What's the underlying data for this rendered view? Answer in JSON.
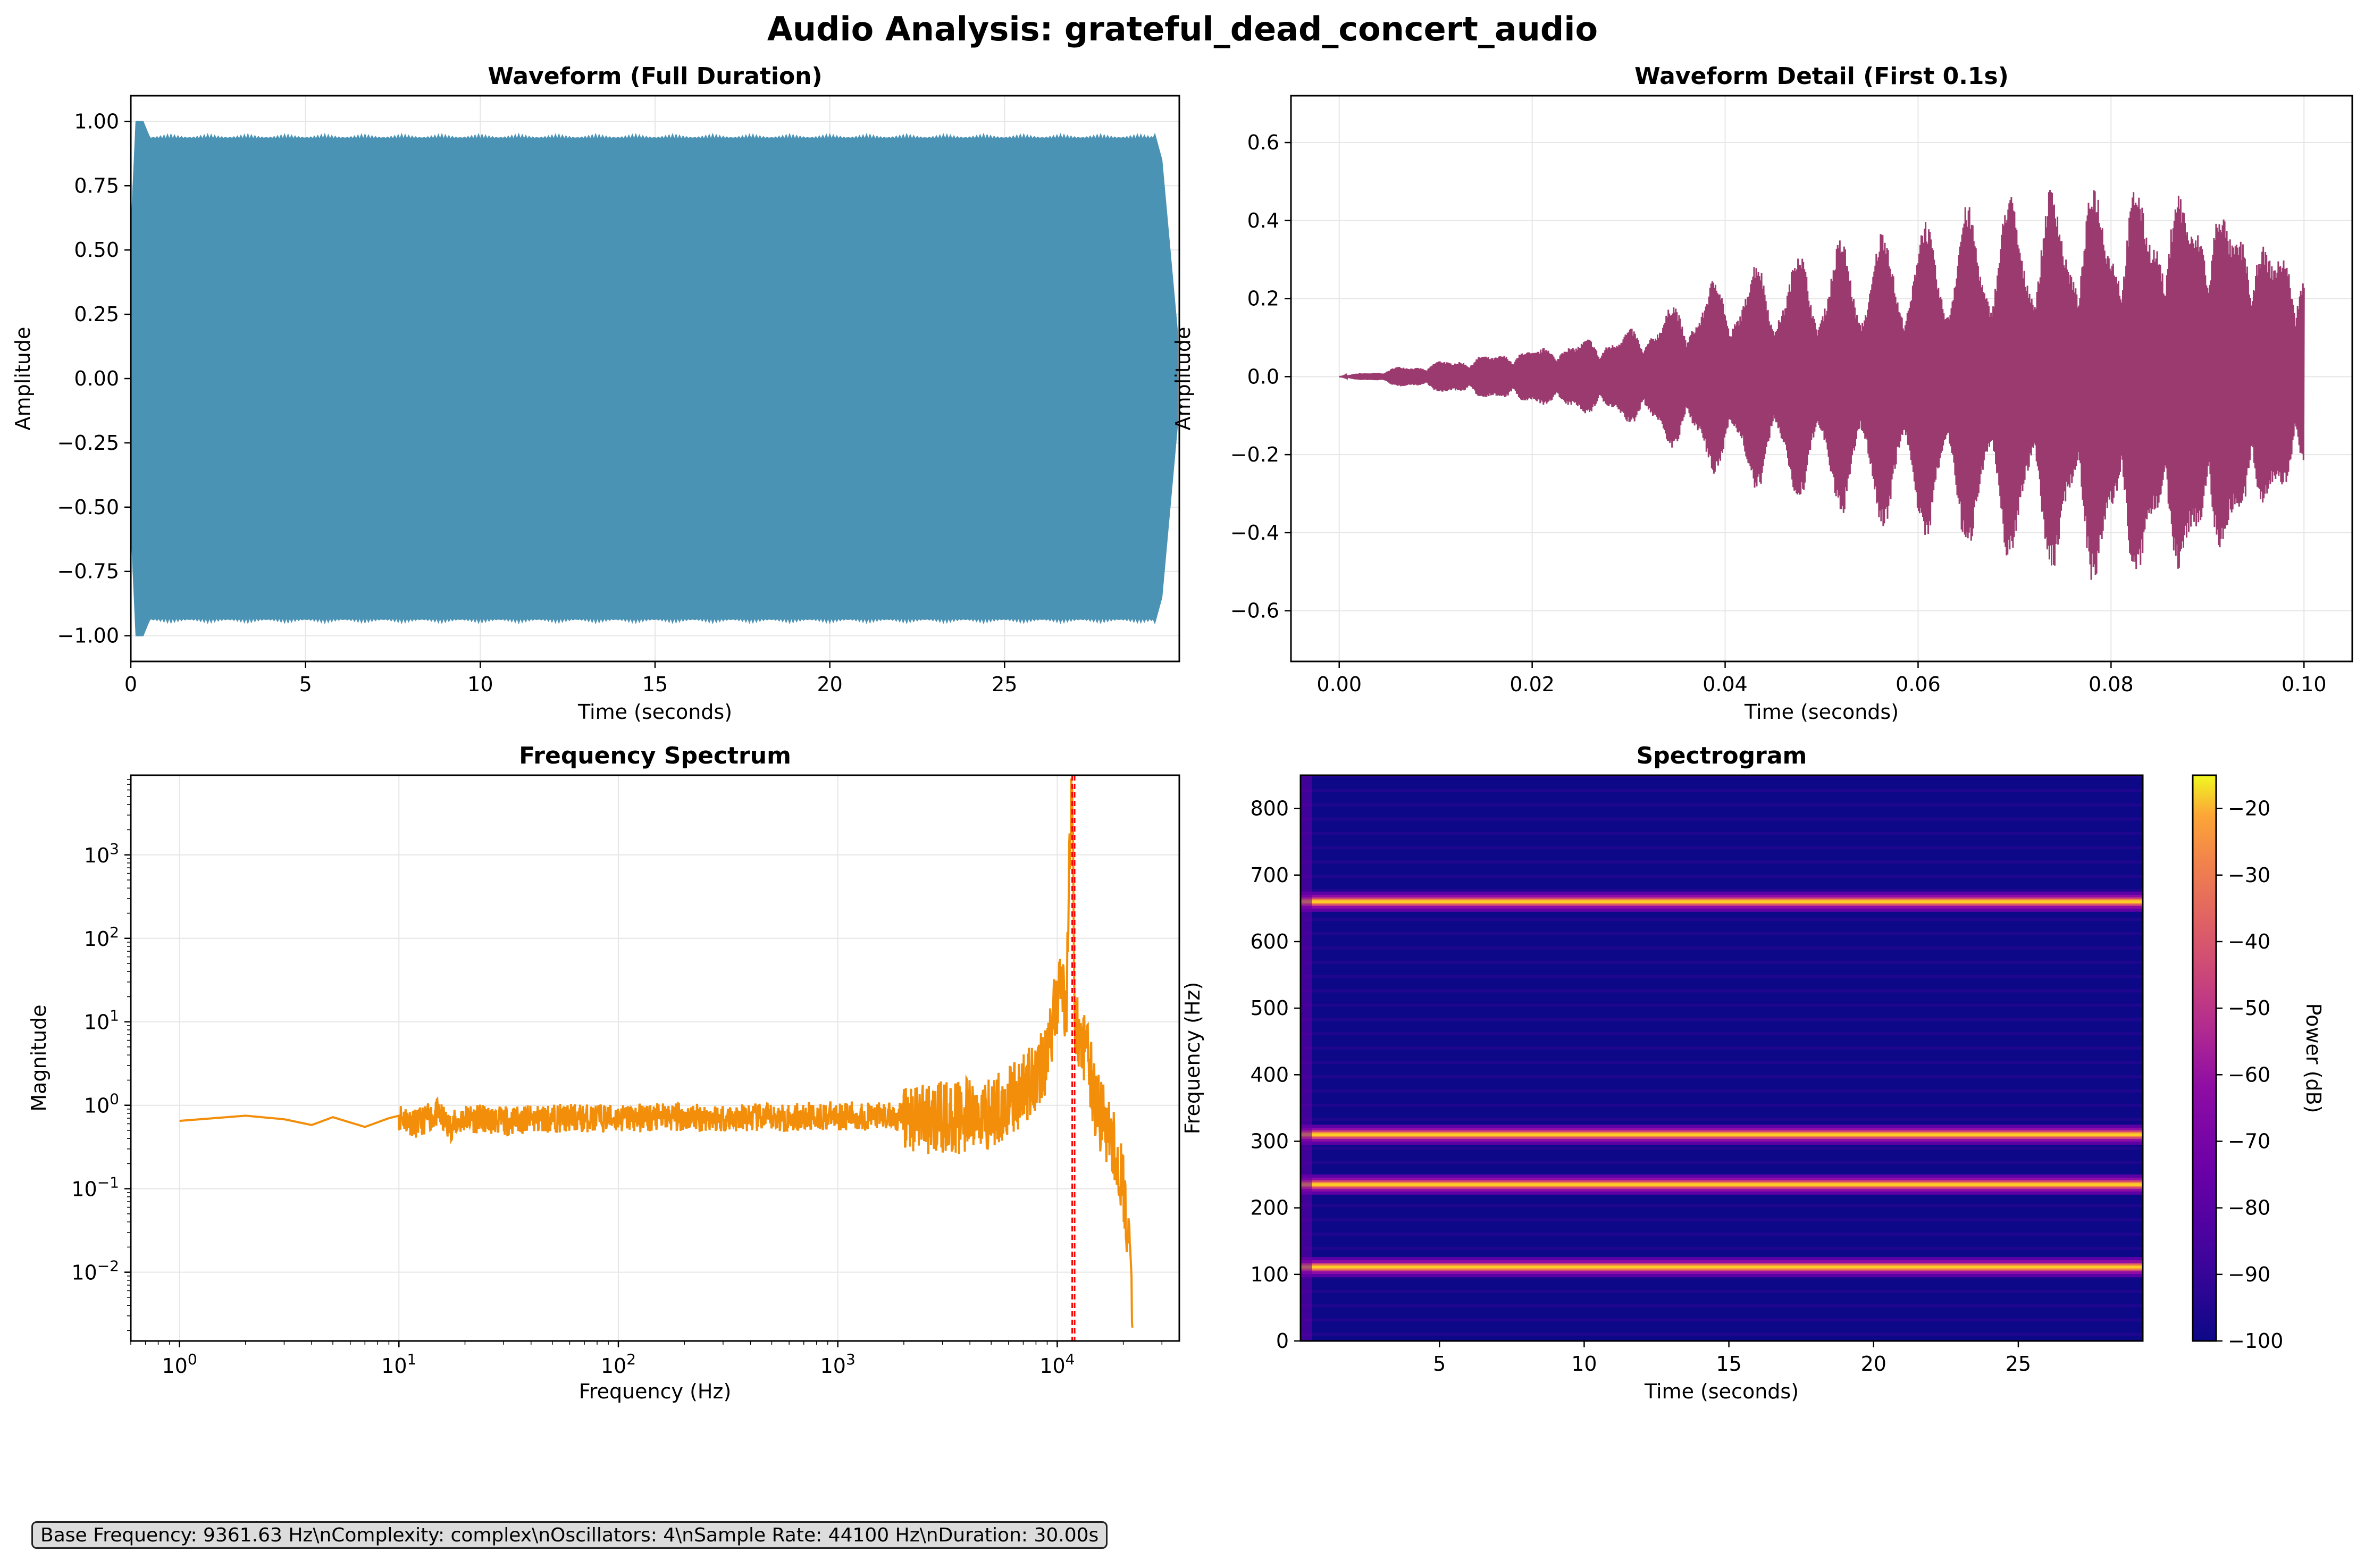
{
  "figure_title": "Audio Analysis: grateful_dead_concert_audio",
  "info_text": "Base Frequency: 9361.63 Hz\\nComplexity: complex\\nOscillators: 4\\nSample Rate: 44100 Hz\\nDuration: 30.00s",
  "colors": {
    "waveform": "#4a93b5",
    "detail": "#9b3a6e",
    "spectrum": "#f28e0a",
    "marker": "#ff0000",
    "grid": "#e6e6e6"
  },
  "chart_data": [
    {
      "type": "area",
      "title": "Waveform (Full Duration)",
      "xlabel": "Time (seconds)",
      "ylabel": "Amplitude",
      "xlim": [
        0,
        30
      ],
      "ylim": [
        -1.1,
        1.1
      ],
      "xticks": [
        0,
        5,
        10,
        15,
        20,
        25
      ],
      "yticks": [
        -1.0,
        -0.75,
        -0.5,
        -0.25,
        0.0,
        0.25,
        0.5,
        0.75,
        1.0
      ],
      "ytick_labels": [
        "−1.00",
        "−0.75",
        "−0.50",
        "−0.25",
        "0.00",
        "0.25",
        "0.50",
        "0.75",
        "1.00"
      ],
      "grid": true,
      "envelope": {
        "x": [
          0,
          0.15,
          0.35,
          0.5,
          29.3,
          29.5,
          30
        ],
        "upper": [
          0.55,
          1.0,
          1.0,
          0.95,
          0.95,
          0.85,
          0.1
        ],
        "lower": [
          -0.55,
          -1.0,
          -1.0,
          -0.95,
          -0.95,
          -0.85,
          -0.1
        ]
      }
    },
    {
      "type": "line",
      "title": "Waveform Detail (First 0.1s)",
      "xlabel": "Time (seconds)",
      "ylabel": "Amplitude",
      "xlim": [
        -0.005,
        0.105
      ],
      "ylim": [
        -0.73,
        0.72
      ],
      "xticks": [
        0.0,
        0.02,
        0.04,
        0.06,
        0.08,
        0.1
      ],
      "xtick_labels": [
        "0.00",
        "0.02",
        "0.04",
        "0.06",
        "0.08",
        "0.10"
      ],
      "yticks": [
        -0.6,
        -0.4,
        -0.2,
        0.0,
        0.2,
        0.4,
        0.6
      ],
      "ytick_labels": [
        "−0.6",
        "−0.4",
        "−0.2",
        "0.0",
        "0.2",
        "0.4",
        "0.6"
      ],
      "grid": true,
      "envelope": {
        "x": [
          0,
          0.01,
          0.02,
          0.03,
          0.04,
          0.05,
          0.06,
          0.07,
          0.08,
          0.09,
          0.1
        ],
        "upper": [
          0.0,
          0.05,
          0.1,
          0.15,
          0.3,
          0.35,
          0.4,
          0.5,
          0.58,
          0.62,
          0.4
        ],
        "lower": [
          0.0,
          -0.05,
          -0.1,
          -0.15,
          -0.3,
          -0.35,
          -0.42,
          -0.5,
          -0.63,
          -0.65,
          -0.35
        ]
      }
    },
    {
      "type": "line",
      "title": "Frequency Spectrum",
      "xlabel": "Frequency (Hz)",
      "ylabel": "Magnitude",
      "xscale": "log",
      "yscale": "log",
      "xlim": [
        0.6,
        36000
      ],
      "ylim": [
        0.0015,
        9000
      ],
      "xticks": [
        1,
        10,
        100,
        1000,
        10000
      ],
      "xtick_labels": [
        "10^0",
        "10^1",
        "10^2",
        "10^3",
        "10^4"
      ],
      "yticks": [
        0.01,
        0.1,
        1,
        10,
        100,
        1000
      ],
      "ytick_labels": [
        "10^-2",
        "10^-1",
        "10^0",
        "10^1",
        "10^2",
        "10^3"
      ],
      "grid": true,
      "series": [
        {
          "x": [
            1,
            2,
            3,
            4,
            5,
            7,
            9,
            10,
            12,
            15,
            17,
            20,
            30,
            50,
            100,
            200,
            500,
            1000,
            2000,
            3000,
            5000,
            7000,
            9000,
            10000,
            10500,
            11000,
            11500,
            11800,
            12000,
            13000,
            14000,
            15000,
            17000,
            19000,
            20000,
            21000,
            22000
          ],
          "y": [
            0.65,
            0.75,
            0.68,
            0.58,
            0.72,
            0.55,
            0.7,
            0.75,
            0.6,
            0.8,
            0.55,
            0.7,
            0.65,
            0.7,
            0.7,
            0.72,
            0.7,
            0.75,
            0.72,
            0.7,
            0.8,
            1.5,
            4.0,
            20,
            35,
            12,
            3000,
            5000,
            8,
            6,
            3,
            1.0,
            0.5,
            0.2,
            0.1,
            0.03,
            0.003
          ]
        }
      ],
      "vlines": [
        11700,
        12000
      ]
    },
    {
      "type": "heatmap",
      "title": "Spectrogram",
      "xlabel": "Time (seconds)",
      "ylabel": "Frequency (Hz)",
      "xlim": [
        0.2,
        29.3
      ],
      "ylim": [
        0,
        850
      ],
      "xticks": [
        5,
        10,
        15,
        20,
        25
      ],
      "yticks": [
        0,
        100,
        200,
        300,
        400,
        500,
        600,
        700,
        800
      ],
      "bands_hz": [
        111,
        235,
        310,
        660
      ],
      "colorbar": {
        "label": "Power (dB)",
        "range": [
          -100,
          -15
        ],
        "ticks": [
          -100,
          -90,
          -80,
          -70,
          -60,
          -50,
          -40,
          -30,
          -20
        ],
        "tick_labels": [
          "−100",
          "−90",
          "−80",
          "−70",
          "−60",
          "−50",
          "−40",
          "−30",
          "−20"
        ]
      }
    }
  ]
}
